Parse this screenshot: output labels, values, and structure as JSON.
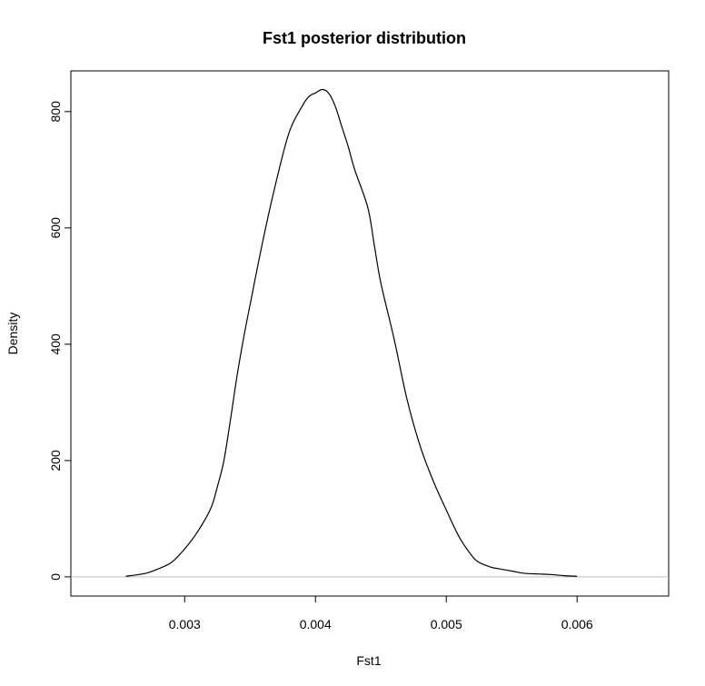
{
  "chart_data": {
    "type": "line",
    "title": "Fst1 posterior distribution",
    "xlabel": "Fst1",
    "ylabel": "Density",
    "xlim": [
      0.00213,
      0.0067
    ],
    "ylim": [
      -33,
      870
    ],
    "xticks": [
      {
        "value": 0.003,
        "label": "0.003"
      },
      {
        "value": 0.004,
        "label": "0.004"
      },
      {
        "value": 0.005,
        "label": "0.005"
      },
      {
        "value": 0.006,
        "label": "0.006"
      }
    ],
    "yticks": [
      {
        "value": 0,
        "label": "0"
      },
      {
        "value": 200,
        "label": "200"
      },
      {
        "value": 400,
        "label": "400"
      },
      {
        "value": 600,
        "label": "600"
      },
      {
        "value": 800,
        "label": "800"
      }
    ],
    "baseline": {
      "y": 0,
      "color": "#bebebe"
    },
    "series": [
      {
        "color": "#000000",
        "x": [
          0.00255,
          0.0027,
          0.0028,
          0.0029,
          0.003,
          0.0031,
          0.0032,
          0.00325,
          0.0033,
          0.00335,
          0.0034,
          0.00345,
          0.0035,
          0.0036,
          0.0037,
          0.0038,
          0.0039,
          0.00395,
          0.004,
          0.00405,
          0.0041,
          0.00415,
          0.0042,
          0.00425,
          0.0043,
          0.0044,
          0.00445,
          0.0045,
          0.0046,
          0.0047,
          0.0048,
          0.0049,
          0.005,
          0.0051,
          0.0052,
          0.00525,
          0.0053,
          0.00535,
          0.0054,
          0.0055,
          0.0056,
          0.0057,
          0.0058,
          0.0059,
          0.006
        ],
        "y": [
          1,
          6,
          14,
          25,
          48,
          78,
          118,
          155,
          200,
          270,
          345,
          410,
          468,
          580,
          680,
          765,
          810,
          826,
          832,
          838,
          832,
          810,
          775,
          740,
          700,
          635,
          570,
          505,
          410,
          305,
          225,
          165,
          115,
          68,
          35,
          25,
          20,
          16,
          14,
          10,
          6,
          5,
          4,
          2,
          1
        ]
      }
    ]
  }
}
